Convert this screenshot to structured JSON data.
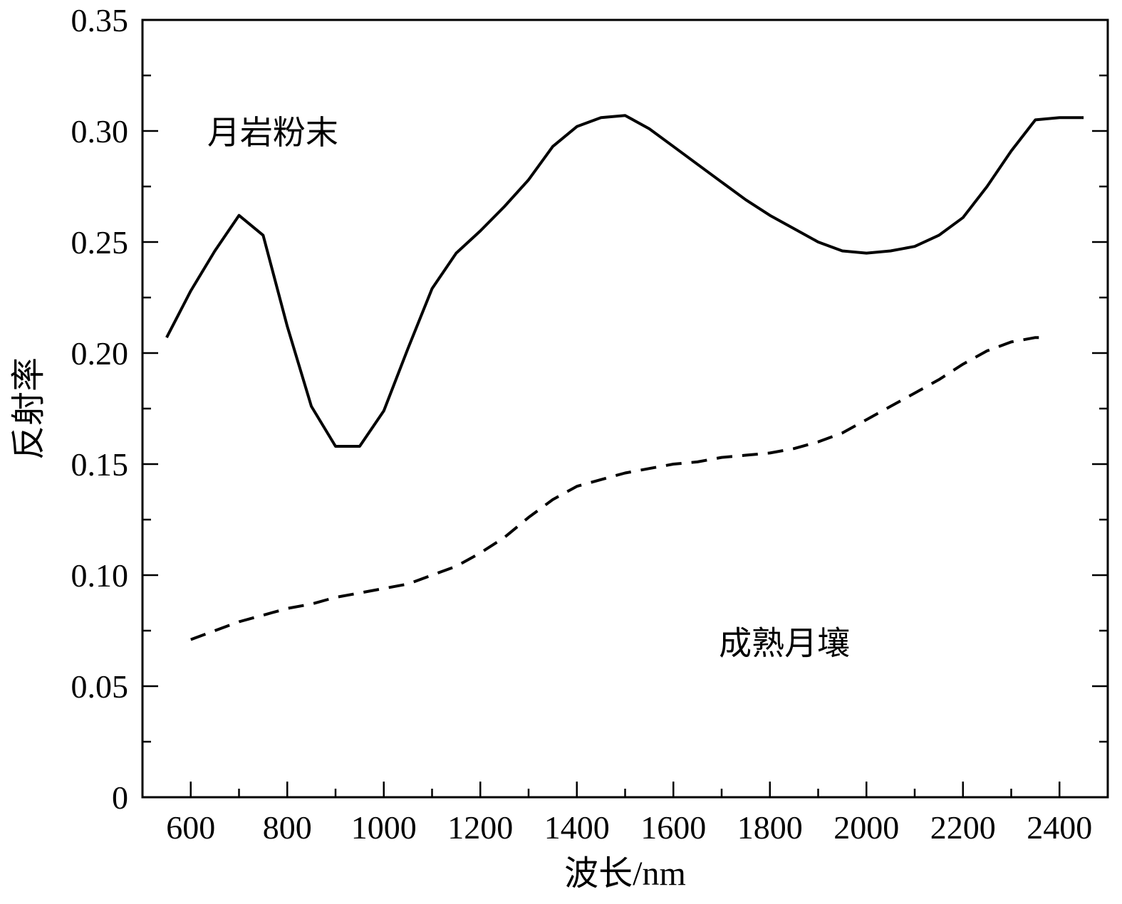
{
  "chart_data": {
    "type": "line",
    "xlabel": "波长/nm",
    "ylabel": "反射率",
    "xlim": [
      500,
      2500
    ],
    "ylim": [
      0,
      0.35
    ],
    "x_ticks": [
      600,
      800,
      1000,
      1200,
      1400,
      1600,
      1800,
      2000,
      2200,
      2400
    ],
    "x_tick_labels": [
      "600",
      "800",
      "1000",
      "1200",
      "1400",
      "1600",
      "1800",
      "2000",
      "2200",
      "2400"
    ],
    "x_minor_step": 100,
    "y_ticks": [
      0,
      0.05,
      0.1,
      0.15,
      0.2,
      0.25,
      0.3,
      0.35
    ],
    "y_tick_labels": [
      "0",
      "0.05",
      "0.10",
      "0.15",
      "0.20",
      "0.25",
      "0.30",
      "0.35"
    ],
    "y_minor_step": 0.025,
    "grid": false,
    "legend": "none",
    "series": [
      {
        "style": "solid",
        "color": "#000000",
        "x": [
          550,
          600,
          650,
          700,
          750,
          800,
          850,
          900,
          950,
          1000,
          1050,
          1100,
          1150,
          1200,
          1250,
          1300,
          1350,
          1400,
          1450,
          1500,
          1550,
          1600,
          1650,
          1700,
          1750,
          1800,
          1850,
          1900,
          1950,
          2000,
          2050,
          2100,
          2150,
          2200,
          2250,
          2300,
          2350,
          2400,
          2450
        ],
        "y": [
          0.207,
          0.228,
          0.246,
          0.262,
          0.253,
          0.212,
          0.176,
          0.158,
          0.158,
          0.174,
          0.202,
          0.229,
          0.245,
          0.255,
          0.266,
          0.278,
          0.293,
          0.302,
          0.306,
          0.307,
          0.301,
          0.293,
          0.285,
          0.277,
          0.269,
          0.262,
          0.256,
          0.25,
          0.246,
          0.245,
          0.246,
          0.248,
          0.253,
          0.261,
          0.275,
          0.291,
          0.305,
          0.306,
          0.306
        ]
      },
      {
        "style": "dashed",
        "color": "#000000",
        "x": [
          600,
          650,
          700,
          750,
          800,
          850,
          900,
          950,
          1000,
          1050,
          1100,
          1150,
          1200,
          1250,
          1300,
          1350,
          1400,
          1450,
          1500,
          1550,
          1600,
          1650,
          1700,
          1750,
          1800,
          1850,
          1900,
          1950,
          2000,
          2050,
          2100,
          2150,
          2200,
          2250,
          2300,
          2350,
          2370
        ],
        "y": [
          0.071,
          0.075,
          0.079,
          0.082,
          0.085,
          0.087,
          0.09,
          0.092,
          0.094,
          0.096,
          0.1,
          0.104,
          0.11,
          0.117,
          0.126,
          0.134,
          0.14,
          0.143,
          0.146,
          0.148,
          0.15,
          0.151,
          0.153,
          0.154,
          0.155,
          0.157,
          0.16,
          0.164,
          0.17,
          0.176,
          0.182,
          0.188,
          0.195,
          0.201,
          0.205,
          0.207,
          0.207
        ]
      }
    ],
    "annotations": [
      {
        "text": "月岩粉末",
        "x": 770,
        "y": 0.3
      },
      {
        "text": "成熟月壤",
        "x": 1830,
        "y": 0.07
      }
    ]
  }
}
